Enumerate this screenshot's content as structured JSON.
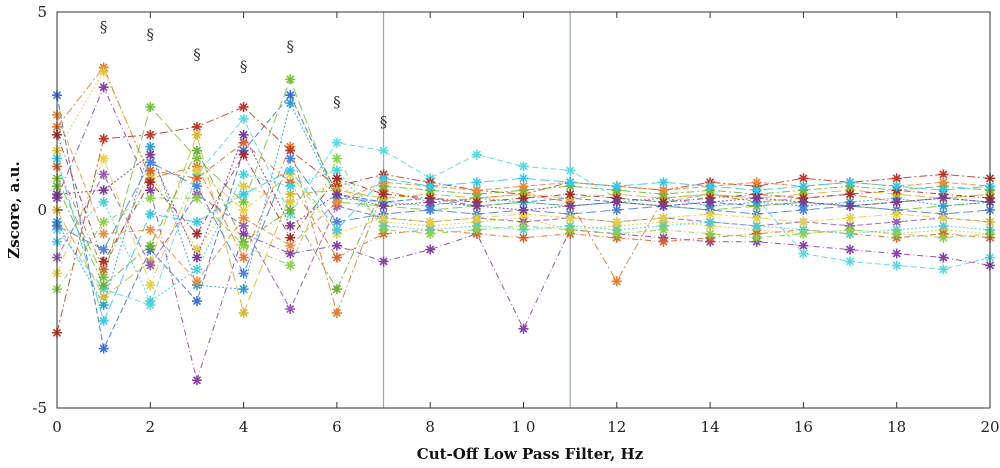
{
  "chart_data": {
    "type": "line",
    "title": "",
    "xlabel": "Cut-Off Low Pass Filter, Hz",
    "ylabel": "Zscore, a.u.",
    "xlim": [
      0,
      20
    ],
    "ylim": [
      -5,
      5
    ],
    "x_ticks": [
      {
        "value": 0,
        "label": "0"
      },
      {
        "value": 2,
        "label": "2"
      },
      {
        "value": 4,
        "label": "4"
      },
      {
        "value": 6,
        "label": "6"
      },
      {
        "value": 8,
        "label": "8"
      },
      {
        "value": 10,
        "label": "1 0"
      },
      {
        "value": 12,
        "label": "12"
      },
      {
        "value": 14,
        "label": "14"
      },
      {
        "value": 16,
        "label": "16"
      },
      {
        "value": 18,
        "label": "18"
      },
      {
        "value": 20,
        "label": "20"
      }
    ],
    "y_ticks": [
      {
        "value": 5,
        "label": "5"
      },
      {
        "value": 0,
        "label": "0"
      },
      {
        "value": -5,
        "label": "-5"
      }
    ],
    "grid": false,
    "reference_lines_x": [
      7,
      11
    ],
    "significance_markers": [
      {
        "x": 1,
        "y": 4.5,
        "text": "§"
      },
      {
        "x": 2,
        "y": 4.3,
        "text": "§"
      },
      {
        "x": 3,
        "y": 3.8,
        "text": "§"
      },
      {
        "x": 4,
        "y": 3.5,
        "text": "§"
      },
      {
        "x": 5,
        "y": 4.0,
        "text": "§"
      },
      {
        "x": 6,
        "y": 2.6,
        "text": "§"
      },
      {
        "x": 7,
        "y": 2.1,
        "text": "§"
      }
    ],
    "marker": "asterisk",
    "x": [
      0,
      1,
      2,
      3,
      4,
      5,
      6,
      7,
      8,
      9,
      10,
      11,
      12,
      13,
      14,
      15,
      16,
      17,
      18,
      19,
      20
    ],
    "series": [
      {
        "color": "#3a6fd8",
        "values": [
          2.9,
          -3.5,
          -1.0,
          -2.3,
          1.5,
          2.9,
          0.4,
          0.2,
          0.3,
          0.1,
          0.2,
          0.3,
          0.2,
          0.1,
          0.2,
          0.1,
          0.2,
          0.1,
          0.2,
          0.3,
          0.2
        ]
      },
      {
        "color": "#e67a2a",
        "values": [
          2.1,
          3.6,
          0.8,
          1.1,
          -1.2,
          1.6,
          -2.6,
          0.5,
          0.2,
          0.3,
          0.4,
          0.2,
          -1.8,
          0.3,
          0.4,
          0.2,
          0.3,
          0.4,
          0.2,
          0.3,
          0.4
        ]
      },
      {
        "color": "#e2c83a",
        "values": [
          1.5,
          3.5,
          0.9,
          -1.0,
          0.6,
          0.2,
          0.7,
          -0.3,
          -0.4,
          -0.3,
          -0.2,
          -0.5,
          -0.4,
          -0.3,
          -0.4,
          -0.5,
          -0.6,
          -0.5,
          -0.6,
          -0.5,
          -0.6
        ]
      },
      {
        "color": "#8a3fa8",
        "values": [
          0.3,
          3.1,
          0.5,
          -4.3,
          -0.6,
          -1.1,
          -0.9,
          -1.3,
          -1.0,
          -0.6,
          -3.0,
          -0.5,
          -0.6,
          -0.7,
          -0.8,
          -0.8,
          -0.9,
          -1.0,
          -1.1,
          -1.2,
          -1.4
        ]
      },
      {
        "color": "#78c23a",
        "values": [
          0.8,
          -1.7,
          2.6,
          1.3,
          0.2,
          3.3,
          0.2,
          0.1,
          0.0,
          0.1,
          0.2,
          0.1,
          0.2,
          0.1,
          0.0,
          0.1,
          0.2,
          0.1,
          0.0,
          0.1,
          0.2
        ]
      },
      {
        "color": "#5ad8e0",
        "values": [
          -0.5,
          -2.0,
          -2.4,
          0.9,
          2.3,
          -0.1,
          1.7,
          1.5,
          0.8,
          1.4,
          1.1,
          1.0,
          0.3,
          0.2,
          0.4,
          0.3,
          -1.1,
          -1.3,
          -1.4,
          -1.5,
          -1.2
        ]
      },
      {
        "color": "#c0392b",
        "values": [
          -3.1,
          1.8,
          1.9,
          2.1,
          2.6,
          1.5,
          0.6,
          0.9,
          0.7,
          0.5,
          0.4,
          0.7,
          0.6,
          0.5,
          0.7,
          0.6,
          0.8,
          0.7,
          0.8,
          0.9,
          0.8
        ]
      },
      {
        "color": "#2ca0d0",
        "values": [
          -0.3,
          -2.4,
          1.6,
          -1.9,
          -2.0,
          2.7,
          0.3,
          0.2,
          0.1,
          0.3,
          0.2,
          0.1,
          0.2,
          0.3,
          0.1,
          0.2,
          0.1,
          0.2,
          0.3,
          0.1,
          0.2
        ]
      },
      {
        "color": "#d9652b",
        "values": [
          1.1,
          -1.5,
          1.0,
          0.8,
          1.7,
          0.7,
          -1.2,
          -0.6,
          -0.5,
          -0.6,
          -0.7,
          -0.6,
          -0.7,
          -0.8,
          -0.7,
          -0.6,
          -0.5,
          -0.6,
          -0.7,
          -0.6,
          -0.7
        ]
      },
      {
        "color": "#d4b830",
        "values": [
          0.0,
          -2.2,
          -1.3,
          1.9,
          -2.6,
          0.4,
          0.5,
          0.3,
          0.4,
          0.3,
          0.4,
          0.3,
          0.4,
          0.3,
          0.4,
          0.3,
          0.4,
          0.5,
          0.4,
          0.3,
          0.4
        ]
      },
      {
        "color": "#9b59b6",
        "values": [
          -1.2,
          0.9,
          -1.4,
          0.4,
          -0.4,
          -2.5,
          0.1,
          -0.2,
          -0.3,
          -0.2,
          -0.3,
          -0.2,
          -0.3,
          -0.2,
          -0.3,
          -0.4,
          -0.3,
          -0.4,
          -0.3,
          -0.2,
          -0.3
        ]
      },
      {
        "color": "#6ab535",
        "values": [
          0.6,
          -1.9,
          -0.9,
          1.5,
          -0.8,
          0.0,
          -2.0,
          0.6,
          0.5,
          0.4,
          0.5,
          0.6,
          0.5,
          0.4,
          0.5,
          0.4,
          0.5,
          0.6,
          0.5,
          0.6,
          0.5
        ]
      },
      {
        "color": "#48d0da",
        "values": [
          -0.8,
          0.2,
          -2.3,
          -1.5,
          0.9,
          0.6,
          1.0,
          -0.4,
          -0.5,
          -0.4,
          -0.5,
          -0.4,
          -0.5,
          -0.4,
          -0.3,
          -0.4,
          -0.5,
          -0.6,
          -0.5,
          -0.4,
          -0.5
        ]
      },
      {
        "color": "#a32d2d",
        "values": [
          1.9,
          -1.3,
          0.7,
          -0.6,
          1.4,
          -0.7,
          0.8,
          0.4,
          0.3,
          0.2,
          0.3,
          0.4,
          0.3,
          0.2,
          0.3,
          0.4,
          0.3,
          0.4,
          0.5,
          0.4,
          0.3
        ]
      },
      {
        "color": "#4a82e0",
        "values": [
          -0.4,
          -1.0,
          1.2,
          0.6,
          -1.6,
          1.3,
          -0.3,
          -0.1,
          0.0,
          -0.1,
          0.0,
          -0.1,
          0.0,
          0.1,
          0.0,
          -0.1,
          0.0,
          0.1,
          0.0,
          -0.1,
          0.0
        ]
      },
      {
        "color": "#f08a3a",
        "values": [
          2.4,
          -0.6,
          -0.5,
          -1.8,
          -0.2,
          -0.9,
          0.2,
          0.7,
          0.6,
          0.5,
          0.6,
          0.7,
          0.6,
          0.5,
          0.6,
          0.7,
          0.6,
          0.7,
          0.6,
          0.7,
          0.6
        ]
      },
      {
        "color": "#e6d040",
        "values": [
          -1.6,
          1.3,
          -1.9,
          1.0,
          0.0,
          0.9,
          -0.6,
          -0.2,
          -0.3,
          -0.2,
          -0.1,
          -0.2,
          -0.3,
          -0.2,
          -0.1,
          -0.2,
          -0.3,
          -0.2,
          -0.1,
          -0.2,
          -0.3
        ]
      },
      {
        "color": "#7d3c98",
        "values": [
          0.4,
          0.5,
          1.4,
          -1.2,
          1.9,
          -0.4,
          0.4,
          0.1,
          0.2,
          0.1,
          0.0,
          0.1,
          0.2,
          0.1,
          0.2,
          0.3,
          0.2,
          0.1,
          0.2,
          0.3,
          0.2
        ]
      },
      {
        "color": "#8bd04a",
        "values": [
          -2.0,
          -0.3,
          0.3,
          0.3,
          -0.9,
          -1.4,
          1.3,
          -0.5,
          -0.6,
          -0.5,
          -0.4,
          -0.5,
          -0.6,
          -0.5,
          -0.6,
          -0.7,
          -0.6,
          -0.5,
          -0.6,
          -0.7,
          -0.6
        ]
      },
      {
        "color": "#38c8e8",
        "values": [
          1.3,
          -2.8,
          -0.1,
          -0.3,
          0.4,
          1.0,
          -0.5,
          0.8,
          0.6,
          0.7,
          0.8,
          0.7,
          0.6,
          0.7,
          0.6,
          0.5,
          0.6,
          0.7,
          0.6,
          0.5,
          0.6
        ]
      }
    ]
  }
}
